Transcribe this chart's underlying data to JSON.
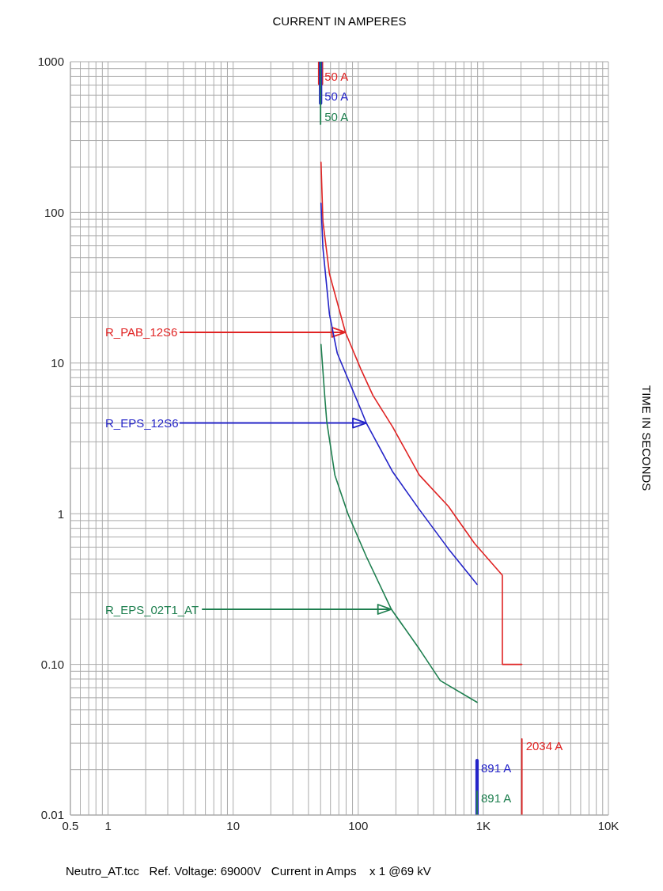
{
  "chart_data": {
    "type": "line",
    "xlabel": "CURRENT IN AMPERES",
    "ylabel": "TIME IN SECONDS",
    "annotations": [
      {
        "text": "R_PAB_12S6",
        "x": 79,
        "y": 16
      },
      {
        "text": "R_EPS_12S6",
        "x": 116,
        "y": 4
      },
      {
        "text": "R_EPS_02T1_AT",
        "x": 184,
        "y": 0.232
      },
      "Neutro_AT.tcc   Ref. Voltage: 69000V   Current in Amps    x 1 @69 kV"
    ],
    "series": [
      {
        "color": "#e02424",
        "x": [
          50.4,
          52.2,
          58.9,
          79,
          105,
          131,
          189,
          307,
          525,
          851,
          1420,
          1420,
          2034
        ],
        "values": [
          215,
          87,
          39,
          16,
          9.1,
          6.1,
          3.75,
          1.81,
          1.12,
          0.635,
          0.39,
          0.1,
          0.1
        ]
      },
      {
        "color": "#2424c8",
        "x": [
          50.4,
          52.2,
          58.9,
          68,
          105,
          116,
          189,
          307,
          525,
          891
        ],
        "values": [
          115,
          58,
          21,
          11.6,
          4.9,
          4,
          1.89,
          1.07,
          0.586,
          0.34
        ]
      },
      {
        "color": "#1e7f4f",
        "x": [
          50.4,
          54,
          56,
          65,
          83,
          116,
          184,
          307,
          453,
          891
        ],
        "values": [
          13.3,
          6,
          4.1,
          1.81,
          0.99,
          0.52,
          0.232,
          0.127,
          0.078,
          0.056
        ]
      },
      {
        "name": "50 A",
        "color": "#e02424",
        "x": [
          50,
          50
        ],
        "values": [
          1000,
          720
        ]
      },
      {
        "name": "50 A",
        "color": "#2424c8",
        "x": [
          50,
          50
        ],
        "values": [
          1000,
          530
        ]
      },
      {
        "name": "50 A",
        "color": "#1e7f4f",
        "x": [
          50,
          50
        ],
        "values": [
          1000,
          385
        ]
      },
      {
        "name": "2034 A",
        "color": "#e02424",
        "x": [
          2034,
          2034
        ],
        "values": [
          0.01,
          0.032
        ]
      },
      {
        "name": "891 A",
        "color": "#2424c8",
        "x": [
          891,
          891
        ],
        "values": [
          0.01,
          0.023
        ]
      },
      {
        "name": "891 A",
        "color": "#1e7f4f",
        "x": [
          891,
          891
        ],
        "values": [
          0.01,
          0.0144
        ]
      }
    ],
    "log": "xy",
    "grid": true,
    "xlim": [
      0.5,
      10000
    ],
    "ylim": [
      0.01,
      1000
    ],
    "xticks": [
      0.5,
      {
        "value": 0.6,
        "label": null
      },
      {
        "value": 0.7,
        "label": null
      },
      {
        "value": 0.8,
        "label": null
      },
      {
        "value": 0.9,
        "label": null
      },
      1,
      {
        "value": 2,
        "label": null
      },
      {
        "value": 3,
        "label": null
      },
      {
        "value": 4,
        "label": null
      },
      {
        "value": 5,
        "label": null
      },
      {
        "value": 6,
        "label": null
      },
      {
        "value": 7,
        "label": null
      },
      {
        "value": 8,
        "label": null
      },
      {
        "value": 9,
        "label": null
      },
      10,
      {
        "value": 20,
        "label": null
      },
      {
        "value": 30,
        "label": null
      },
      {
        "value": 40,
        "label": null
      },
      {
        "value": 50,
        "label": null
      },
      {
        "value": 60,
        "label": null
      },
      {
        "value": 70,
        "label": null
      },
      {
        "value": 80,
        "label": null
      },
      {
        "value": 90,
        "label": null
      },
      100,
      {
        "value": 200,
        "label": null
      },
      {
        "value": 300,
        "label": null
      },
      {
        "value": 400,
        "label": null
      },
      {
        "value": 500,
        "label": null
      },
      {
        "value": 600,
        "label": null
      },
      {
        "value": 700,
        "label": null
      },
      {
        "value": 800,
        "label": null
      },
      {
        "value": 900,
        "label": null
      },
      {
        "value": 1000,
        "label": "1K"
      },
      {
        "value": 2000,
        "label": null
      },
      {
        "value": 3000,
        "label": null
      },
      {
        "value": 4000,
        "label": null
      },
      {
        "value": 5000,
        "label": null
      },
      {
        "value": 6000,
        "label": null
      },
      {
        "value": 7000,
        "label": null
      },
      {
        "value": 8000,
        "label": null
      },
      {
        "value": 9000,
        "label": null
      },
      {
        "value": 10000,
        "label": "10K"
      }
    ],
    "yticks": [
      0.01,
      {
        "value": 0.02,
        "label": null
      },
      {
        "value": 0.03,
        "label": null
      },
      {
        "value": 0.04,
        "label": null
      },
      {
        "value": 0.05,
        "label": null
      },
      {
        "value": 0.06,
        "label": null
      },
      {
        "value": 0.07,
        "label": null
      },
      {
        "value": 0.08,
        "label": null
      },
      {
        "value": 0.09,
        "label": null
      },
      {
        "value": 0.1,
        "label": "0.10"
      },
      {
        "value": 0.2,
        "label": null
      },
      {
        "value": 0.3,
        "label": null
      },
      {
        "value": 0.4,
        "label": null
      },
      {
        "value": 0.5,
        "label": null
      },
      {
        "value": 0.6,
        "label": null
      },
      {
        "value": 0.7,
        "label": null
      },
      {
        "value": 0.8,
        "label": null
      },
      {
        "value": 0.9,
        "label": null
      },
      1,
      {
        "value": 2,
        "label": null
      },
      {
        "value": 3,
        "label": null
      },
      {
        "value": 4,
        "label": null
      },
      {
        "value": 5,
        "label": null
      },
      {
        "value": 6,
        "label": null
      },
      {
        "value": 7,
        "label": null
      },
      {
        "value": 8,
        "label": null
      },
      {
        "value": 9,
        "label": null
      },
      10,
      {
        "value": 20,
        "label": null
      },
      {
        "value": 30,
        "label": null
      },
      {
        "value": 40,
        "label": null
      },
      {
        "value": 50,
        "label": null
      },
      {
        "value": 60,
        "label": null
      },
      {
        "value": 70,
        "label": null
      },
      {
        "value": 80,
        "label": null
      },
      {
        "value": 90,
        "label": null
      },
      100,
      {
        "value": 200,
        "label": null
      },
      {
        "value": 300,
        "label": null
      },
      {
        "value": 400,
        "label": null
      },
      {
        "value": 500,
        "label": null
      },
      {
        "value": 600,
        "label": null
      },
      {
        "value": 700,
        "label": null
      },
      {
        "value": 800,
        "label": null
      },
      {
        "value": 900,
        "label": null
      },
      1000
    ]
  }
}
